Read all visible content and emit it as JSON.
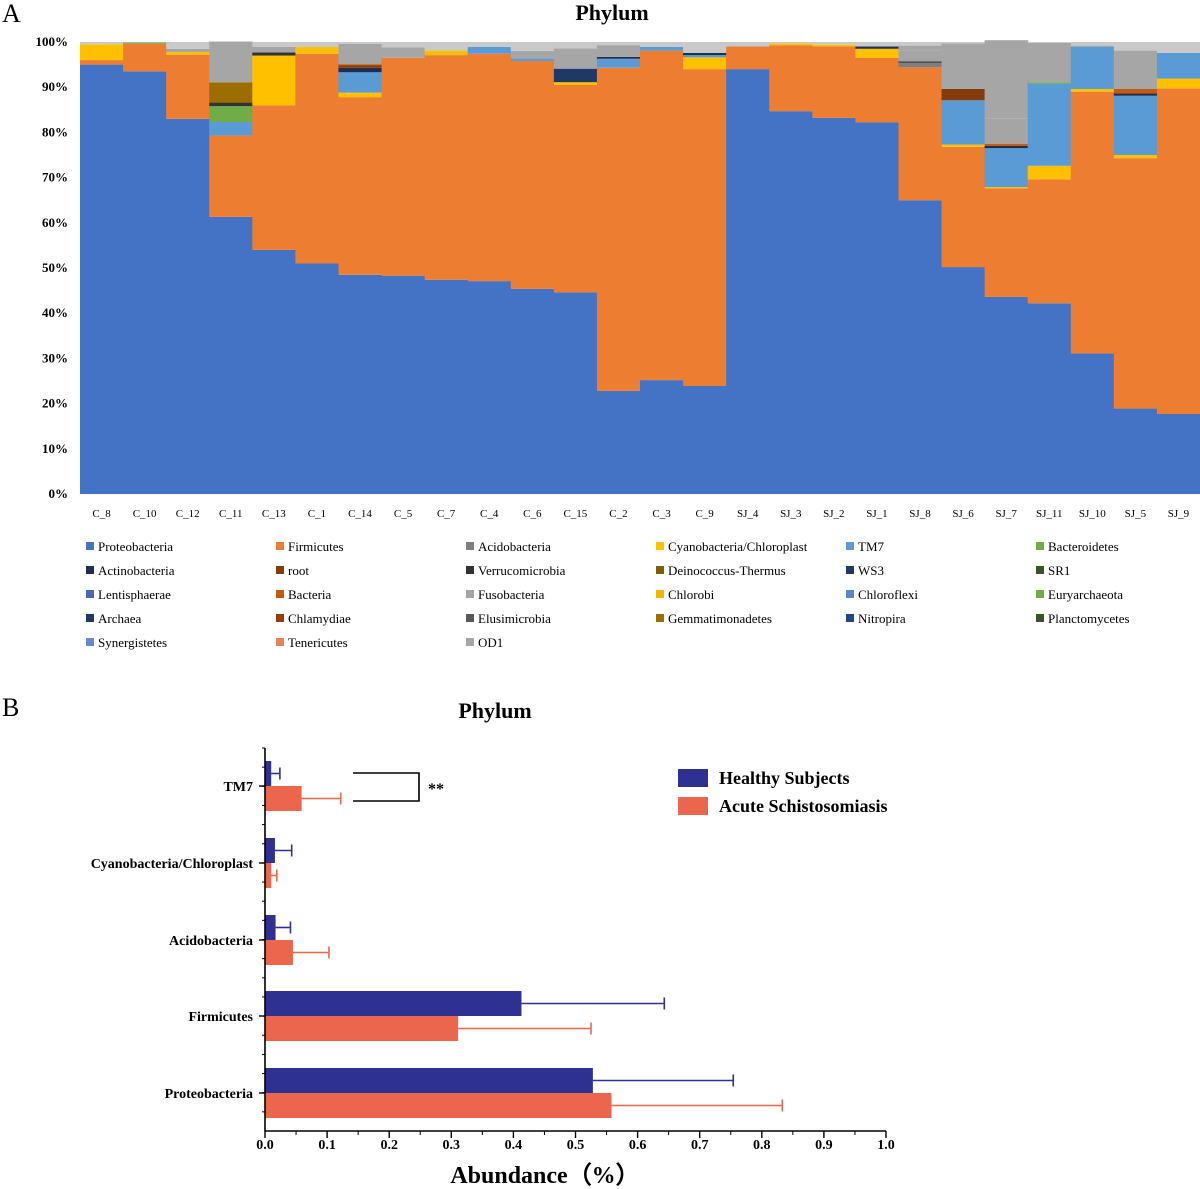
{
  "figure": {
    "panel_a_label": "A",
    "panel_b_label": "B"
  },
  "colors": {
    "healthy": "#2e3192",
    "acute": "#ec664d",
    "phyla": {
      "Proteobacteria": "#4472c4",
      "Firmicutes": "#ed7d31",
      "Acidobacteria": "#7f7f7f",
      "Cyanobacteria/Chloroplast": "#ffc000",
      "TM7": "#5b9bd5",
      "Bacteroidetes": "#70ad47",
      "Actinobacteria": "#1f2d4e",
      "root": "#843c0c",
      "Verrucomicrobia": "#333333",
      "Deinococcus-Thermus": "#7f6000",
      "WS3": "#203864",
      "SR1": "#385723",
      "Lentisphaerae": "#4a6ab0",
      "Bacteria": "#c55a11",
      "Fusobacteria": "#a5a5a5",
      "Chlorobi": "#f4b400",
      "Chloroflexi": "#5b86c8",
      "Euryarchaeota": "#6fad47",
      "Archaea": "#1f3864",
      "Chlamydiae": "#9e3a0c",
      "Elusimicrobia": "#595959",
      "Gemmatimonadetes": "#9c6d00",
      "Nitropira": "#1a4a8a",
      "Planctomycetes": "#375623",
      "Synergistetes": "#6a8ad0",
      "Tenericutes": "#e8825a",
      "OD1": "#a6a6a6"
    }
  },
  "chart_data": [
    {
      "type": "bar",
      "stacked": true,
      "title": "Phylum",
      "xlabel": "",
      "ylabel": "",
      "ylim": [
        0,
        100
      ],
      "yticks": [
        "0%",
        "10%",
        "20%",
        "30%",
        "40%",
        "50%",
        "60%",
        "70%",
        "80%",
        "90%",
        "100%"
      ],
      "categories": [
        "C_8",
        "C_10",
        "C_12",
        "C_11",
        "C_13",
        "C_1",
        "C_14",
        "C_5",
        "C_7",
        "C_4",
        "C_6",
        "C_15",
        "C_2",
        "C_3",
        "C_9",
        "SJ_4",
        "SJ_3",
        "SJ_2",
        "SJ_1",
        "SJ_8",
        "SJ_6",
        "SJ_7",
        "SJ_11",
        "SJ_10",
        "SJ_5",
        "SJ_9"
      ],
      "legend": [
        "Proteobacteria",
        "Firmicutes",
        "Acidobacteria",
        "Cyanobacteria/Chloroplast",
        "TM7",
        "Bacteroidetes",
        "Actinobacteria",
        "root",
        "Verrucomicrobia",
        "Deinococcus-Thermus",
        "WS3",
        "SR1",
        "Lentisphaerae",
        "Bacteria",
        "Fusobacteria",
        "Chlorobi",
        "Chloroflexi",
        "Euryarchaeota",
        "Archaea",
        "Chlamydiae",
        "Elusimicrobia",
        "Gemmatimonadetes",
        "Nitropira",
        "Planctomycetes",
        "Synergistetes",
        "Tenericutes",
        "OD1"
      ],
      "series": [
        {
          "name": "Proteobacteria",
          "values": [
            95,
            93.5,
            83,
            61.3,
            54,
            51,
            48.5,
            48.3,
            47.4,
            47.1,
            45.4,
            44.6,
            22.8,
            25.2,
            23.9,
            94,
            84.7,
            83.2,
            82.2,
            65,
            50.2,
            43.6,
            42.2,
            31.1,
            18.9,
            17.7
          ]
        },
        {
          "name": "Firmicutes",
          "values": [
            1,
            6.1,
            14.2,
            18,
            32,
            46.4,
            39.3,
            48.2,
            49.7,
            50.3,
            50.4,
            45.9,
            71.5,
            72.9,
            70.1,
            5,
            14.6,
            15.8,
            14.3,
            29.4,
            26.6,
            24,
            27.4,
            57.9,
            55.4,
            72
          ]
        },
        {
          "name": "Acidobacteria",
          "values": [
            0,
            0,
            0,
            0,
            0,
            0,
            0,
            0,
            0,
            0,
            0,
            0,
            0,
            0,
            0,
            0,
            0,
            0,
            0,
            1,
            0,
            0,
            0,
            0,
            0,
            0
          ]
        },
        {
          "name": "Cyanobacteria/Chloroplast",
          "values": [
            3.5,
            0,
            0.6,
            0,
            11,
            1.5,
            1,
            0,
            1,
            0,
            0,
            0.6,
            0,
            0,
            2.6,
            0,
            0.4,
            0.4,
            2,
            0,
            0.5,
            0.3,
            3,
            0.6,
            0.7,
            2.2
          ]
        },
        {
          "name": "TM7",
          "values": [
            0,
            0,
            0,
            3,
            0,
            0,
            4.5,
            0,
            0,
            1.5,
            0.6,
            0,
            2,
            0.8,
            0.5,
            0,
            0,
            0,
            0,
            0,
            9.8,
            8.6,
            18.2,
            9.3,
            13.1,
            5.7
          ]
        },
        {
          "name": "Bacteroidetes",
          "values": [
            0,
            0.3,
            0,
            3.5,
            0,
            0,
            0,
            0,
            0,
            0,
            0,
            0,
            0,
            0,
            0,
            0,
            0,
            0,
            0,
            0,
            0,
            0,
            0.3,
            0,
            0,
            0
          ]
        },
        {
          "name": "Actinobacteria",
          "values": [
            0,
            0,
            0,
            0,
            0,
            0,
            1,
            0,
            0,
            0,
            0,
            0,
            0.4,
            0,
            0.5,
            0,
            0,
            0,
            0.5,
            0,
            0,
            0.5,
            0,
            0,
            0.5,
            0
          ]
        },
        {
          "name": "root",
          "values": [
            0,
            0,
            0,
            0,
            0,
            0,
            0.5,
            0,
            0,
            0,
            0,
            0,
            0,
            0,
            0,
            0,
            0,
            0,
            0,
            0,
            2.5,
            0,
            0,
            0,
            0,
            0
          ]
        },
        {
          "name": "Verrucomicrobia",
          "values": [
            0,
            0,
            0,
            0.8,
            0.7,
            0,
            0,
            0,
            0,
            0,
            0,
            0,
            0,
            0,
            0,
            0,
            0,
            0,
            0,
            0.3,
            0,
            0,
            0,
            0,
            0,
            0
          ]
        },
        {
          "name": "Deinococcus-Thermus",
          "values": [
            0,
            0,
            0,
            0,
            0,
            0,
            0,
            0,
            0,
            0,
            0,
            0,
            0,
            0,
            0,
            0,
            0,
            0,
            0,
            0,
            0,
            0,
            0,
            0,
            0,
            0
          ]
        },
        {
          "name": "WS3",
          "values": [
            0,
            0,
            0,
            0,
            0,
            0,
            0,
            0,
            0,
            0,
            0,
            3,
            0,
            0,
            0,
            0,
            0,
            0,
            0,
            0,
            0,
            0,
            0,
            0,
            0,
            0
          ]
        },
        {
          "name": "SR1",
          "values": [
            0,
            0,
            0,
            0,
            0,
            0,
            0,
            0,
            0,
            0,
            0,
            0,
            0,
            0,
            0,
            0,
            0,
            0,
            0,
            0,
            0,
            0,
            0,
            0,
            0,
            0
          ]
        },
        {
          "name": "Lentisphaerae",
          "values": [
            0,
            0,
            0,
            0,
            0,
            0,
            0,
            0,
            0,
            0,
            0,
            0,
            0,
            0,
            0,
            0,
            0,
            0,
            0,
            0,
            0,
            0,
            0,
            0,
            0,
            0
          ]
        },
        {
          "name": "Bacteria",
          "values": [
            0,
            0,
            0,
            0,
            0,
            0,
            0.3,
            0,
            0,
            0,
            0,
            0,
            0,
            0,
            0,
            0,
            0,
            0,
            0,
            0,
            0,
            0.5,
            0,
            0,
            1,
            0
          ]
        },
        {
          "name": "Fusobacteria",
          "values": [
            0,
            0,
            0.7,
            0,
            1.2,
            0,
            0,
            0,
            0,
            0,
            0,
            0,
            0,
            0,
            0,
            0,
            0,
            0,
            0,
            2.5,
            0,
            5.5,
            0,
            0.3,
            0,
            0
          ]
        },
        {
          "name": "Chlorobi",
          "values": [
            0,
            0,
            0,
            0,
            0,
            0,
            0,
            0,
            0,
            0,
            0,
            0,
            0,
            0,
            0,
            0,
            0,
            0,
            0,
            0,
            0,
            0,
            0,
            0,
            0,
            0
          ]
        },
        {
          "name": "Chloroflexi",
          "values": [
            0,
            0,
            0,
            0,
            0,
            0,
            0,
            0,
            0,
            0,
            0,
            0,
            0,
            0,
            0,
            0,
            0,
            0,
            0,
            0,
            0,
            0,
            0,
            0,
            0,
            0
          ]
        },
        {
          "name": "Euryarchaeota",
          "values": [
            0,
            0,
            0,
            0,
            0,
            0,
            0,
            0,
            0,
            0,
            0,
            0,
            0,
            0,
            0,
            0,
            0,
            0,
            0,
            0,
            0,
            0,
            0,
            0,
            0,
            0
          ]
        },
        {
          "name": "Archaea",
          "values": [
            0,
            0,
            0,
            0,
            0,
            0,
            0,
            0,
            0,
            0,
            0,
            0,
            0,
            0,
            0,
            0,
            0,
            0,
            0,
            0,
            0,
            0,
            0,
            0,
            0,
            0
          ]
        },
        {
          "name": "Chlamydiae",
          "values": [
            0,
            0,
            0,
            0,
            0,
            0,
            0,
            0,
            0,
            0,
            0,
            0,
            0,
            0,
            0,
            0,
            0,
            0,
            0,
            0,
            0,
            0,
            0,
            0,
            0,
            0
          ]
        },
        {
          "name": "Elusimicrobia",
          "values": [
            0,
            0,
            0,
            0,
            0,
            0,
            0,
            0,
            0,
            0,
            0,
            0,
            0,
            0,
            0,
            0,
            0,
            0,
            0,
            0,
            0,
            0,
            0,
            0,
            0,
            0
          ]
        },
        {
          "name": "Gemmatimonadetes",
          "values": [
            0,
            0,
            0,
            4.5,
            0,
            0,
            0,
            0,
            0,
            0,
            0,
            0,
            0,
            0,
            0,
            0,
            0,
            0,
            0,
            0,
            0,
            0,
            0,
            0,
            0,
            0
          ]
        },
        {
          "name": "Nitropira",
          "values": [
            0,
            0,
            0,
            0,
            0,
            0,
            0,
            0,
            0,
            0,
            0,
            0,
            0,
            0,
            0,
            0,
            0,
            0,
            0,
            0,
            0,
            0,
            0,
            0,
            0,
            0
          ]
        },
        {
          "name": "Planctomycetes",
          "values": [
            0,
            0,
            0,
            0,
            0,
            0,
            0,
            0,
            0,
            0,
            0,
            0,
            0,
            0,
            0,
            0,
            0,
            0,
            0,
            0,
            0,
            0,
            0,
            0,
            0,
            0
          ]
        },
        {
          "name": "Synergistetes",
          "values": [
            0,
            0,
            0,
            0,
            0,
            0,
            0,
            0,
            0,
            0,
            0,
            0,
            0,
            0,
            0,
            0,
            0,
            0,
            0,
            0,
            0,
            0,
            0,
            0,
            0,
            0
          ]
        },
        {
          "name": "Tenericutes",
          "values": [
            0,
            0,
            0,
            0,
            0,
            0,
            0,
            0,
            0,
            0,
            0,
            0,
            0,
            0,
            0,
            0,
            0,
            0,
            0,
            0,
            0,
            0,
            0,
            0,
            0,
            0
          ]
        },
        {
          "name": "OD1",
          "values": [
            0,
            0,
            0,
            9,
            0,
            0,
            4.5,
            2.3,
            0,
            0,
            1.6,
            4.5,
            2.6,
            0,
            0,
            0,
            0,
            0,
            0,
            1,
            10.1,
            17.4,
            8.7,
            0,
            8.5,
            0
          ]
        }
      ]
    },
    {
      "type": "bar",
      "orientation": "horizontal",
      "title": "Phylum",
      "xlabel": "Abundance（%）",
      "ylabel": "",
      "xlim": [
        0,
        1.0
      ],
      "xticks": [
        "0.0",
        "0.1",
        "0.2",
        "0.3",
        "0.4",
        "0.5",
        "0.6",
        "0.7",
        "0.8",
        "0.9",
        "1.0"
      ],
      "categories": [
        "TM7",
        "Cyanobacteria/Chloroplast",
        "Acidobacteria",
        "Firmicutes",
        "Proteobacteria"
      ],
      "series": [
        {
          "name": "Healthy Subjects",
          "values": [
            0.01,
            0.016,
            0.017,
            0.413,
            0.528
          ],
          "errors": [
            0.014,
            0.027,
            0.024,
            0.23,
            0.226
          ]
        },
        {
          "name": "Acute Schistosomiasis",
          "values": [
            0.059,
            0.01,
            0.045,
            0.311,
            0.558
          ],
          "errors": [
            0.063,
            0.009,
            0.058,
            0.214,
            0.275
          ]
        }
      ],
      "annotations": [
        {
          "category": "TM7",
          "text": "**"
        }
      ],
      "legend_position": "top-right"
    }
  ]
}
